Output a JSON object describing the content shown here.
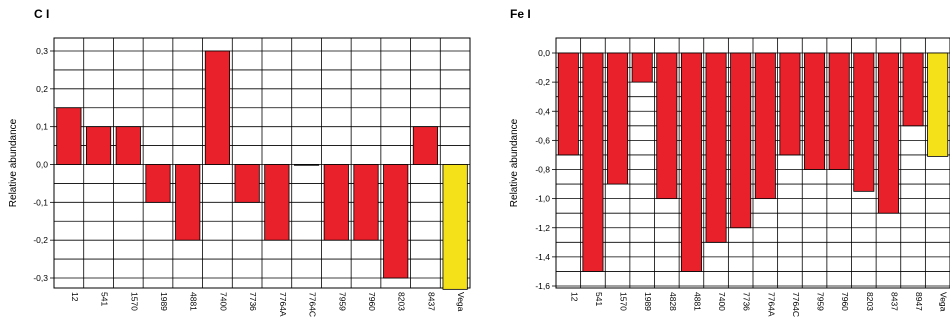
{
  "chart_data": [
    {
      "type": "bar",
      "title": "C I",
      "ylabel": "Relative abundance",
      "xlabel": "",
      "ylim": [
        -0.35,
        0.35
      ],
      "yticks": [
        0.3,
        0.2,
        0.1,
        0.0,
        -0.1,
        -0.2,
        -0.3
      ],
      "ytick_labels": [
        "0,3",
        "0,2",
        "0,1",
        "0,0",
        "-0,1",
        "-0,2",
        "-0,3"
      ],
      "grid": true,
      "categories": [
        "12",
        "541",
        "1570",
        "1989",
        "4881",
        "7400",
        "7736",
        "7764A",
        "7764C",
        "7959",
        "7960",
        "8203",
        "8437",
        "Vega"
      ],
      "values": [
        0.15,
        0.1,
        0.1,
        -0.1,
        -0.2,
        0.3,
        -0.1,
        -0.2,
        0.0,
        -0.2,
        -0.2,
        -0.3,
        0.1,
        -0.33
      ],
      "colors": [
        "#e8212a",
        "#e8212a",
        "#e8212a",
        "#e8212a",
        "#e8212a",
        "#e8212a",
        "#e8212a",
        "#e8212a",
        "#e8212a",
        "#e8212a",
        "#e8212a",
        "#e8212a",
        "#e8212a",
        "#f5e11a"
      ]
    },
    {
      "type": "bar",
      "title": "Fe I",
      "ylabel": "Relative abundance",
      "xlabel": "",
      "ylim": [
        -1.65,
        0.05
      ],
      "yticks": [
        0.0,
        -0.2,
        -0.4,
        -0.6,
        -0.8,
        -1.0,
        -1.2,
        -1.4,
        -1.6
      ],
      "ytick_labels": [
        "0,0",
        "-0,2",
        "-0,4",
        "-0,6",
        "-0,8",
        "-1,0",
        "-1,2",
        "-1,4",
        "-1,6"
      ],
      "grid": true,
      "categories": [
        "12",
        "541",
        "1570",
        "1989",
        "4828",
        "4881",
        "7400",
        "7736",
        "7764A",
        "7764C",
        "7959",
        "7960",
        "8203",
        "8437",
        "8947",
        "Vega"
      ],
      "values": [
        -0.7,
        -1.5,
        -0.9,
        -0.2,
        -1.0,
        -1.5,
        -1.3,
        -1.2,
        -1.0,
        -0.7,
        -0.8,
        -0.8,
        -0.95,
        -1.1,
        -0.5,
        -0.71
      ],
      "colors": [
        "#e8212a",
        "#e8212a",
        "#e8212a",
        "#e8212a",
        "#e8212a",
        "#e8212a",
        "#e8212a",
        "#e8212a",
        "#e8212a",
        "#e8212a",
        "#e8212a",
        "#e8212a",
        "#e8212a",
        "#e8212a",
        "#e8212a",
        "#f5e11a"
      ]
    }
  ]
}
